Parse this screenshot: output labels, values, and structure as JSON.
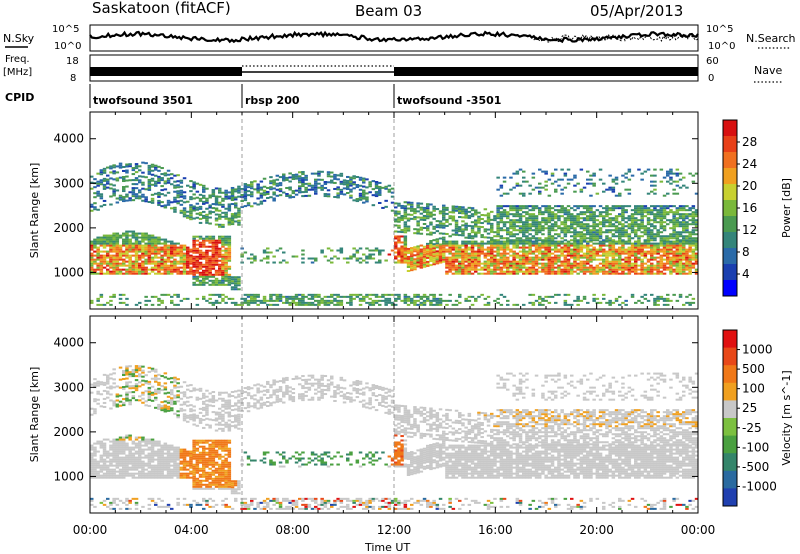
{
  "header": {
    "site": "Saskatoon (fitACF)",
    "beam": "Beam 03",
    "date": "05/Apr/2013"
  },
  "strip_labels": {
    "nsky": "N.Sky",
    "nsearch": "N.Search",
    "freq_line1": "Freq.",
    "freq_line2": "[MHz]",
    "nave": "Nave",
    "cpid": "CPID"
  },
  "noise_axis": {
    "left_ticks": [
      "10^5",
      "10^0"
    ],
    "right_ticks": [
      "10^5",
      "10^0"
    ]
  },
  "freq_axis": {
    "left_ticks": [
      "18",
      "8"
    ],
    "right_ticks": [
      "60",
      "0"
    ]
  },
  "cpid_segments": [
    {
      "label": "twofsound 3501",
      "start": 0,
      "end": 6
    },
    {
      "label": "rbsp 200",
      "start": 6,
      "end": 12
    },
    {
      "label": "twofsound -3501",
      "start": 12,
      "end": 24
    }
  ],
  "chart_data": [
    {
      "type": "heatmap",
      "title": "Power",
      "ylabel": "Slant Range [km]",
      "xlabel": "Time UT",
      "xlim": [
        0,
        24
      ],
      "ylim": [
        180,
        4600
      ],
      "yticks": [
        "1000",
        "2000",
        "3000",
        "4000"
      ],
      "xticks": [
        "00:00",
        "04:00",
        "08:00",
        "12:00",
        "16:00",
        "20:00",
        "00:00"
      ],
      "colorbar": {
        "label": "Power [dB]",
        "ticks": [
          "28",
          "24",
          "20",
          "16",
          "12",
          "8",
          "4"
        ],
        "range": [
          0,
          30
        ],
        "colors": [
          "#0000ff",
          "#1a3fb0",
          "#2a6aa8",
          "#34857a",
          "#4a9a50",
          "#7ab83a",
          "#c8d030",
          "#f0a020",
          "#f07020",
          "#e84018",
          "#d81010"
        ]
      }
    },
    {
      "type": "heatmap",
      "title": "Velocity",
      "ylabel": "Slant Range [km]",
      "xlabel": "Time UT",
      "xlim": [
        0,
        24
      ],
      "ylim": [
        180,
        4600
      ],
      "yticks": [
        "1000",
        "2000",
        "3000",
        "4000"
      ],
      "xticks": [
        "00:00",
        "04:00",
        "08:00",
        "12:00",
        "16:00",
        "20:00",
        "00:00"
      ],
      "colorbar": {
        "label": "Velocity [m s^-1]",
        "ticks": [
          "1000",
          "500",
          "100",
          "25",
          "-25",
          "-100",
          "-500",
          "-1000"
        ],
        "range": [
          -1000,
          1000
        ],
        "colors": [
          "#2040b0",
          "#2a6aa0",
          "#34856a",
          "#4aa040",
          "#7cc040",
          "#c8c8c8",
          "#f0a020",
          "#f07818",
          "#e84818",
          "#e01010"
        ]
      }
    }
  ]
}
